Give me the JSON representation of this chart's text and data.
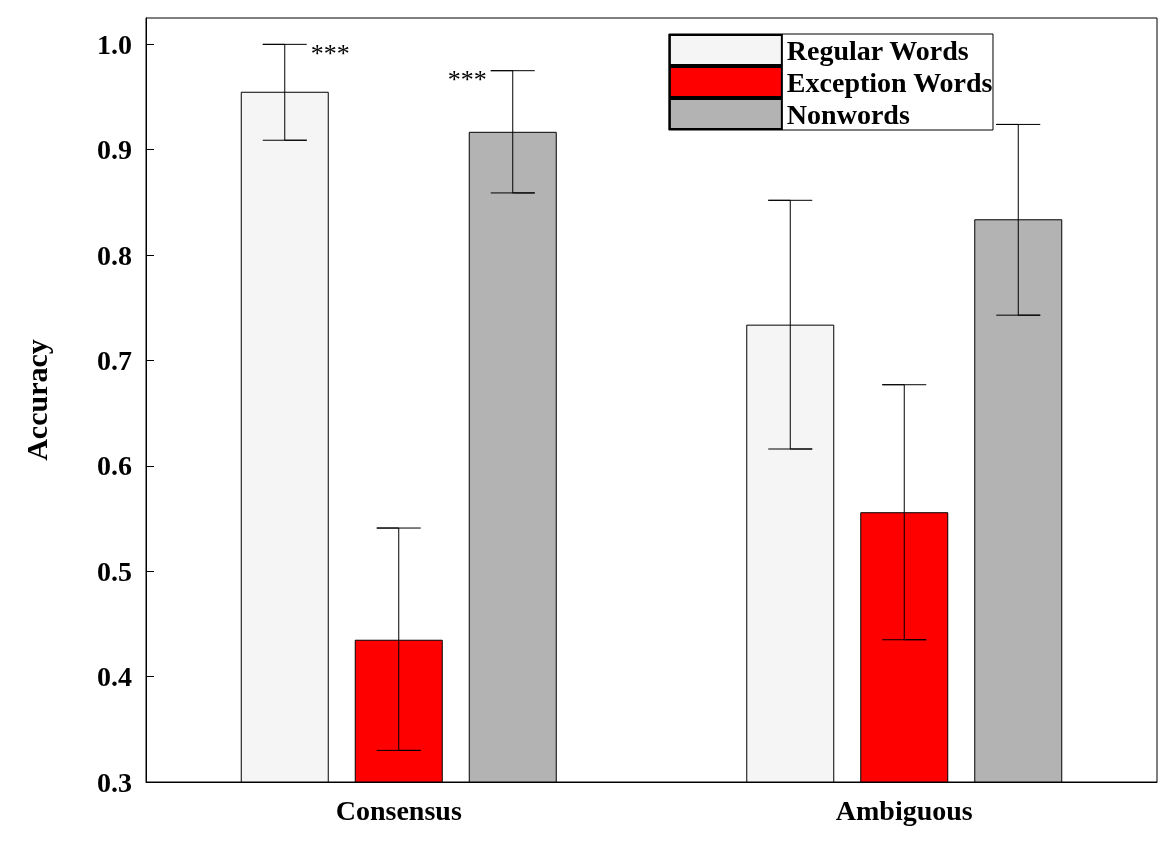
{
  "chart_data": {
    "type": "bar",
    "ylabel": "Accuracy",
    "categories": [
      "Consensus",
      "Ambiguous"
    ],
    "series": [
      {
        "name": "Regular Words",
        "color": "#f5f5f5",
        "values": [
          0.955,
          0.734
        ],
        "errors": [
          [
            0.909,
            1.0
          ],
          [
            0.616,
            0.852
          ]
        ]
      },
      {
        "name": "Exception Words",
        "color": "#ff0000",
        "values": [
          0.435,
          0.556
        ],
        "errors": [
          [
            0.33,
            0.541
          ],
          [
            0.435,
            0.677
          ]
        ]
      },
      {
        "name": "Nonwords",
        "color": "#b3b3b3",
        "values": [
          0.917,
          0.834
        ],
        "errors": [
          [
            0.859,
            0.975
          ],
          [
            0.743,
            0.924
          ]
        ]
      }
    ],
    "ylim": [
      0.3,
      1.025
    ],
    "yticks": [
      0.3,
      0.4,
      0.5,
      0.6,
      0.7,
      0.8,
      0.9,
      {
        "value": 1,
        "label": "1.0"
      }
    ],
    "annotations": [
      "***",
      "***"
    ],
    "grid": false,
    "legend": "top right"
  }
}
